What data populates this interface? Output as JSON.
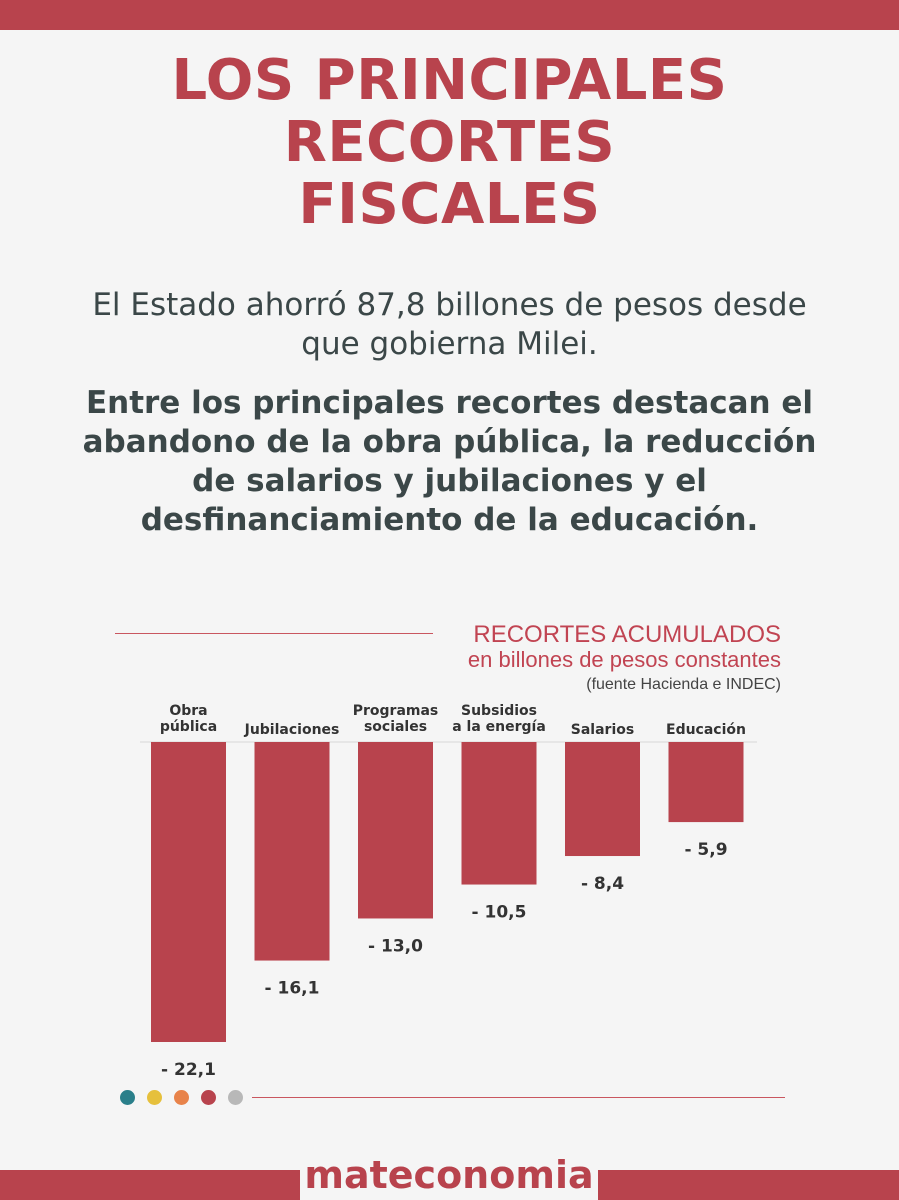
{
  "title_lines": [
    "LOS PRINCIPALES",
    "RECORTES",
    "FISCALES"
  ],
  "intro": {
    "paragraph1": "El Estado ahorró 87,8 billones de pesos desde que gobierna Milei.",
    "paragraph2": "Entre los principales recortes destacan el abandono de la obra pública, la reducción de salarios y jubilaciones y el desfinanciamiento de la educación."
  },
  "chart_data": {
    "type": "bar",
    "title": "RECORTES ACUMULADOS",
    "subtitle": "en billones de pesos constantes",
    "source": "(fuente Hacienda e INDEC)",
    "categories": [
      [
        "Obra",
        "pública"
      ],
      [
        "Jubilaciones"
      ],
      [
        "Programas",
        "sociales"
      ],
      [
        "Subsidios",
        "a la energía"
      ],
      [
        "Salarios"
      ],
      [
        "Educación"
      ]
    ],
    "values": [
      -22.1,
      -16.1,
      -13.0,
      -10.5,
      -8.4,
      -5.9
    ],
    "value_labels": [
      "- 22,1",
      "- 16,1",
      "- 13,0",
      "- 10,5",
      "- 8,4",
      "- 5,9"
    ],
    "ylim": [
      -22.1,
      0
    ],
    "bar_color": "#b8434d"
  },
  "footer": {
    "dot_colors": [
      "#2a7f8a",
      "#e6c03c",
      "#e8834a",
      "#b8434d",
      "#b8b8b8"
    ],
    "brand": "mateconomia"
  }
}
